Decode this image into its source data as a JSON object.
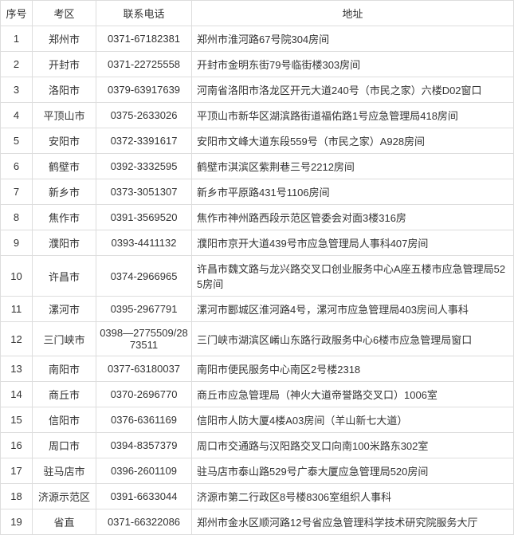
{
  "table": {
    "columns": [
      "序号",
      "考区",
      "联系电话",
      "地址"
    ],
    "rows": [
      [
        "1",
        "郑州市",
        "0371-67182381",
        "郑州市淮河路67号院304房间"
      ],
      [
        "2",
        "开封市",
        "0371-22725558",
        "开封市金明东街79号临街楼303房间"
      ],
      [
        "3",
        "洛阳市",
        "0379-63917639",
        "河南省洛阳市洛龙区开元大道240号（市民之家）六楼D02窗口"
      ],
      [
        "4",
        "平顶山市",
        "0375-2633026",
        "平顶山市新华区湖滨路街道福佑路1号应急管理局418房间"
      ],
      [
        "5",
        "安阳市",
        "0372-3391617",
        "安阳市文峰大道东段559号（市民之家）A928房间"
      ],
      [
        "6",
        "鹤壁市",
        "0392-3332595",
        "鹤壁市淇滨区紫荆巷三号2212房间"
      ],
      [
        "7",
        "新乡市",
        "0373-3051307",
        "新乡市平原路431号1106房间"
      ],
      [
        "8",
        "焦作市",
        "0391-3569520",
        "焦作市神州路西段示范区管委会对面3楼316房"
      ],
      [
        "9",
        "濮阳市",
        "0393-4411132",
        "濮阳市京开大道439号市应急管理局人事科407房间"
      ],
      [
        "10",
        "许昌市",
        "0374-2966965",
        "许昌市魏文路与龙兴路交叉口创业服务中心A座五楼市应急管理局525房间"
      ],
      [
        "11",
        "漯河市",
        "0395-2967791",
        "漯河市郾城区淮河路4号，漯河市应急管理局403房间人事科"
      ],
      [
        "12",
        "三门峡市",
        "0398—2775509/2873511",
        "三门峡市湖滨区崤山东路行政服务中心6楼市应急管理局窗口"
      ],
      [
        "13",
        "南阳市",
        "0377-63180037",
        "南阳市便民服务中心南区2号楼2318"
      ],
      [
        "14",
        "商丘市",
        "0370-2696770",
        "商丘市应急管理局（神火大道帝誉路交叉口）1006室"
      ],
      [
        "15",
        "信阳市",
        "0376-6361169",
        "信阳市人防大厦4楼A03房间（羊山新七大道）"
      ],
      [
        "16",
        "周口市",
        "0394-8357379",
        "周口市交通路与汉阳路交叉口向南100米路东302室"
      ],
      [
        "17",
        "驻马店市",
        "0396-2601109",
        "驻马店市泰山路529号广泰大厦应急管理局520房间"
      ],
      [
        "18",
        "济源示范区",
        "0391-6633044",
        "济源市第二行政区8号楼8306室组织人事科"
      ],
      [
        "19",
        "省直",
        "0371-66322086",
        "郑州市金水区顺河路12号省应急管理科学技术研究院服务大厅"
      ]
    ],
    "border_color": "#dddddd",
    "text_color": "#333333",
    "background_color": "#ffffff",
    "font_size": 13
  }
}
